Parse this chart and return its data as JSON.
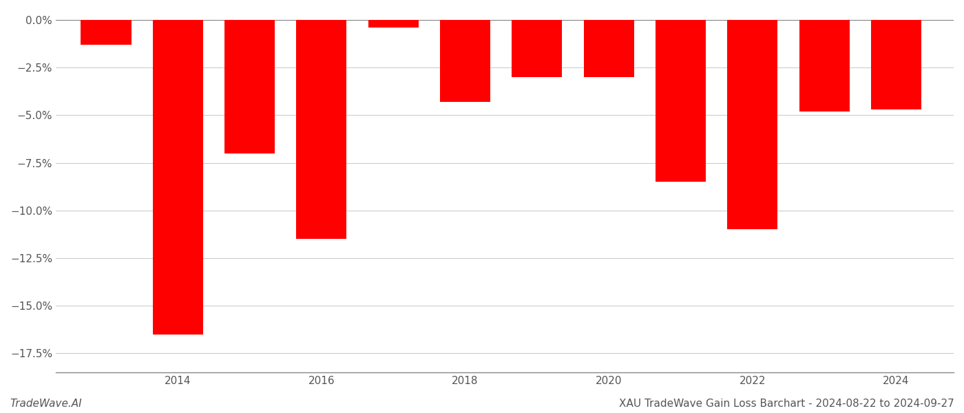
{
  "years": [
    2013,
    2014,
    2015,
    2016,
    2017,
    2018,
    2019,
    2020,
    2021,
    2022,
    2023,
    2024
  ],
  "values": [
    -0.013,
    -0.165,
    -0.07,
    -0.115,
    -0.004,
    -0.043,
    -0.03,
    -0.03,
    -0.085,
    -0.11,
    -0.048,
    -0.047
  ],
  "bar_color": "#ff0000",
  "background_color": "#ffffff",
  "grid_color": "#cccccc",
  "axis_color": "#888888",
  "tick_color": "#555555",
  "ylim": [
    -0.185,
    0.005
  ],
  "yticks": [
    0.0,
    -0.025,
    -0.05,
    -0.075,
    -0.1,
    -0.125,
    -0.15,
    -0.175
  ],
  "xticks": [
    2014,
    2016,
    2018,
    2020,
    2022,
    2024
  ],
  "footer_left": "TradeWave.AI",
  "footer_right": "XAU TradeWave Gain Loss Barchart - 2024-08-22 to 2024-09-27",
  "bar_width": 0.7
}
